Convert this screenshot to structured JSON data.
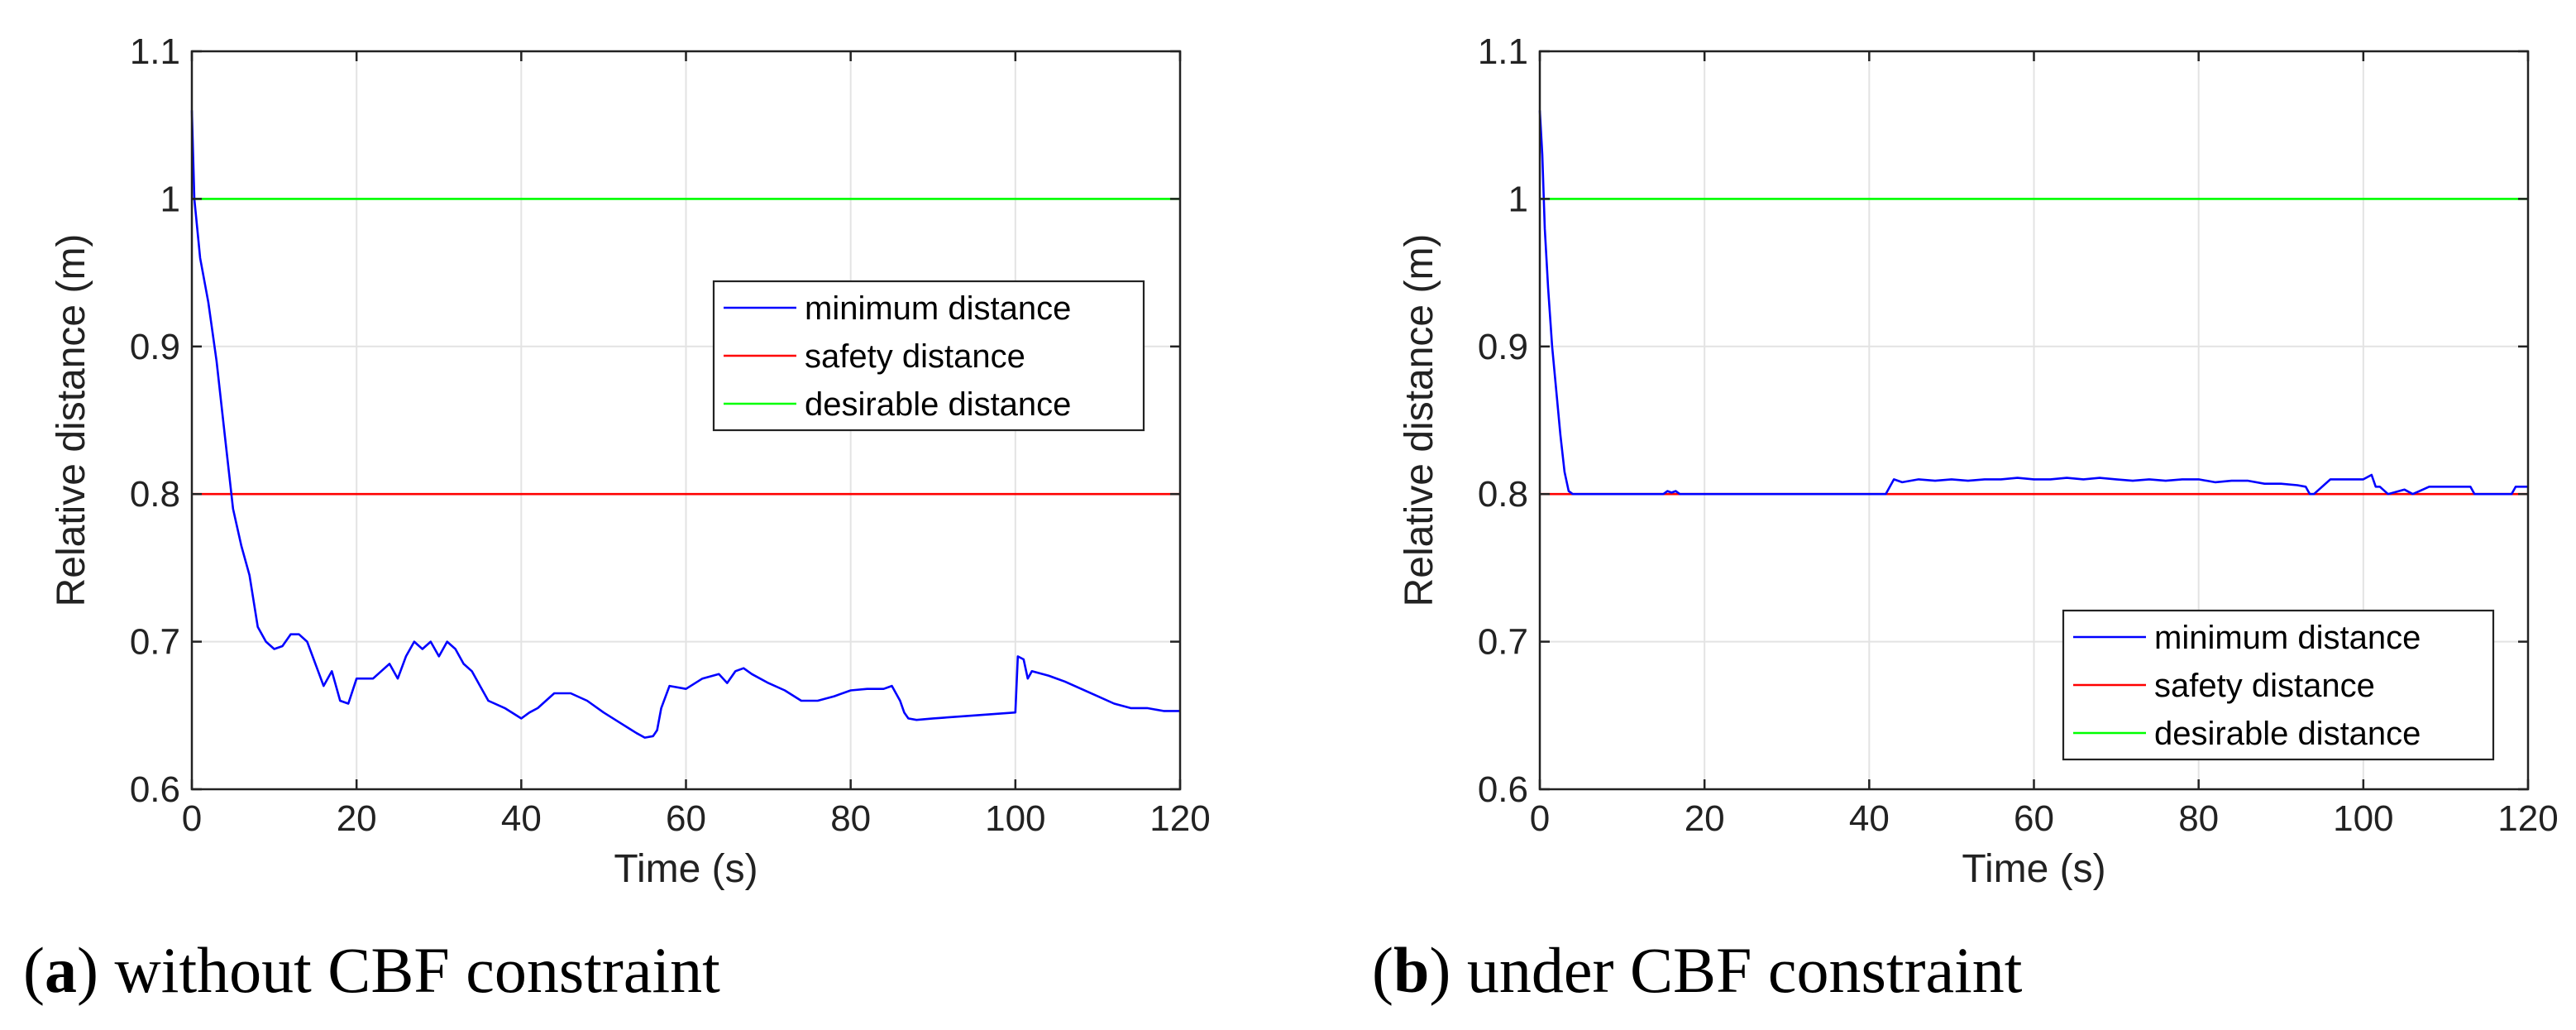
{
  "chart_data": [
    {
      "id": "a",
      "type": "line",
      "caption_letter": "a",
      "caption_text": " without CBF constraint",
      "xlabel": "Time (s)",
      "ylabel": "Relative distance (m)",
      "xlim": [
        0,
        120
      ],
      "ylim": [
        0.6,
        1.1
      ],
      "xticks": [
        "0",
        "20",
        "40",
        "60",
        "80",
        "100",
        "120"
      ],
      "yticks": [
        "0.6",
        "0.7",
        "0.8",
        "0.9",
        "1",
        "1.1"
      ],
      "grid": true,
      "legend_position": "center-right",
      "series": [
        {
          "name": "minimum distance",
          "color": "#0000ff",
          "x": [
            0,
            0.3,
            1,
            2,
            3,
            4,
            5,
            6,
            7,
            8,
            9,
            10,
            11,
            12,
            13,
            14,
            15,
            16,
            17,
            18,
            19,
            20,
            22,
            23,
            24,
            25,
            26,
            27,
            28,
            29,
            30,
            31,
            32,
            33,
            34,
            35,
            36,
            38,
            40,
            41,
            42,
            44,
            46,
            48,
            50,
            52,
            54,
            55,
            56,
            56.5,
            57,
            58,
            60,
            62,
            64,
            65,
            66,
            67,
            68,
            70,
            72,
            74,
            76,
            78,
            80,
            82,
            84,
            85,
            86,
            86.5,
            87,
            88,
            90,
            95,
            100,
            100.3,
            101,
            101.5,
            102,
            104,
            106,
            108,
            110,
            112,
            114,
            116,
            118,
            120
          ],
          "y": [
            1.06,
            1.0,
            0.96,
            0.93,
            0.89,
            0.84,
            0.79,
            0.765,
            0.745,
            0.71,
            0.7,
            0.695,
            0.697,
            0.705,
            0.705,
            0.7,
            0.685,
            0.67,
            0.68,
            0.66,
            0.658,
            0.675,
            0.675,
            0.68,
            0.685,
            0.675,
            0.69,
            0.7,
            0.695,
            0.7,
            0.69,
            0.7,
            0.695,
            0.685,
            0.68,
            0.67,
            0.66,
            0.655,
            0.648,
            0.652,
            0.655,
            0.665,
            0.665,
            0.66,
            0.652,
            0.645,
            0.638,
            0.635,
            0.636,
            0.64,
            0.655,
            0.67,
            0.668,
            0.675,
            0.678,
            0.672,
            0.68,
            0.682,
            0.678,
            0.672,
            0.667,
            0.66,
            0.66,
            0.663,
            0.667,
            0.668,
            0.668,
            0.67,
            0.66,
            0.652,
            0.648,
            0.647,
            0.648,
            0.65,
            0.652,
            0.69,
            0.688,
            0.675,
            0.68,
            0.677,
            0.673,
            0.668,
            0.663,
            0.658,
            0.655,
            0.655,
            0.653,
            0.653
          ]
        },
        {
          "name": "safety distance",
          "color": "#ff0000",
          "x": [
            0,
            120
          ],
          "y": [
            0.8,
            0.8
          ]
        },
        {
          "name": "desirable distance",
          "color": "#00ff00",
          "x": [
            0,
            120
          ],
          "y": [
            1.0,
            1.0
          ]
        }
      ]
    },
    {
      "id": "b",
      "type": "line",
      "caption_letter": "b",
      "caption_text": " under CBF constraint",
      "xlabel": "Time (s)",
      "ylabel": "Relative distance (m)",
      "xlim": [
        0,
        120
      ],
      "ylim": [
        0.6,
        1.1
      ],
      "xticks": [
        "0",
        "20",
        "40",
        "60",
        "80",
        "100",
        "120"
      ],
      "yticks": [
        "0.6",
        "0.7",
        "0.8",
        "0.9",
        "1",
        "1.1"
      ],
      "grid": true,
      "legend_position": "bottom-right",
      "series": [
        {
          "name": "minimum distance",
          "color": "#0000ff",
          "x": [
            0,
            0.3,
            0.6,
            1,
            1.5,
            2,
            2.5,
            3,
            3.5,
            4,
            15,
            15.5,
            16,
            16.5,
            17,
            42,
            43,
            44,
            46,
            48,
            50,
            52,
            54,
            56,
            58,
            60,
            62,
            64,
            66,
            68,
            70,
            72,
            74,
            76,
            78,
            80,
            82,
            84,
            86,
            88,
            90,
            92,
            93,
            93.5,
            94,
            96,
            98,
            100,
            101,
            101.5,
            102,
            103,
            105,
            106,
            108,
            110,
            112,
            113,
            113.5,
            114,
            118,
            118.5,
            120
          ],
          "y": [
            1.06,
            1.03,
            0.98,
            0.94,
            0.9,
            0.87,
            0.84,
            0.815,
            0.802,
            0.8,
            0.8,
            0.802,
            0.801,
            0.802,
            0.8,
            0.8,
            0.81,
            0.808,
            0.81,
            0.809,
            0.81,
            0.809,
            0.81,
            0.81,
            0.811,
            0.81,
            0.81,
            0.811,
            0.81,
            0.811,
            0.81,
            0.809,
            0.81,
            0.809,
            0.81,
            0.81,
            0.808,
            0.809,
            0.809,
            0.807,
            0.807,
            0.806,
            0.805,
            0.8,
            0.8,
            0.81,
            0.81,
            0.81,
            0.813,
            0.805,
            0.805,
            0.8,
            0.803,
            0.8,
            0.805,
            0.805,
            0.805,
            0.805,
            0.8,
            0.8,
            0.8,
            0.805,
            0.805
          ]
        },
        {
          "name": "safety distance",
          "color": "#ff0000",
          "x": [
            0,
            120
          ],
          "y": [
            0.8,
            0.8
          ]
        },
        {
          "name": "desirable distance",
          "color": "#00ff00",
          "x": [
            0,
            120
          ],
          "y": [
            1.0,
            1.0
          ]
        }
      ]
    }
  ]
}
